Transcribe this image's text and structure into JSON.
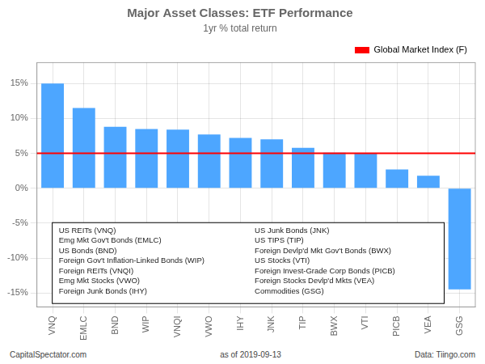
{
  "chart_data": {
    "type": "bar",
    "title": "Major Asset Classes: ETF Performance",
    "subtitle": "1yr % total return",
    "categories": [
      "VNQ",
      "EMLC",
      "BND",
      "WIP",
      "VNQI",
      "VWO",
      "IHY",
      "JNK",
      "TIP",
      "BWX",
      "VTI",
      "PICB",
      "VEA",
      "GSG"
    ],
    "values": [
      15.0,
      11.5,
      8.8,
      8.5,
      8.4,
      7.7,
      7.2,
      7.0,
      5.8,
      5.1,
      5.0,
      2.7,
      1.8,
      -14.5
    ],
    "color": "#4da6ff",
    "reference_line": {
      "name": "Global Market Index (F)",
      "value": 5.0,
      "color": "#ff0000"
    },
    "legend": "upper right",
    "ylim": [
      -17,
      18
    ],
    "yticks": [
      {
        "value": -15,
        "label": "-15%"
      },
      {
        "value": -10,
        "label": "-10%"
      },
      {
        "value": -5,
        "label": "-5%"
      },
      {
        "value": 0,
        "label": "0%"
      },
      {
        "value": 5,
        "label": "5%"
      },
      {
        "value": 10,
        "label": "10%"
      },
      {
        "value": 15,
        "label": "15%"
      }
    ],
    "grid": true,
    "annotation_columns": [
      [
        "US REITs (VNQ)",
        "Emg Mkt Gov't Bonds (EMLC)",
        "US Bonds (BND)",
        "Foreign Gov't Inflation-Linked Bonds (WIP)",
        "Foreign REITs (VNQI)",
        "Emg Mkt Stocks (VWO)",
        "Foreign Junk Bonds (IHY)"
      ],
      [
        "US Junk Bonds (JNK)",
        "US TIPS (TIP)",
        "Foreign Devlp'd Mkt Gov't Bonds (BWX)",
        "US Stocks (VTI)",
        "Foreign Invest-Grade Corp Bonds (PICB)",
        "Foreign Stocks Devlp'd Mkts (VEA)",
        "Commodities (GSG)"
      ]
    ],
    "footnotes": [
      "CapitalSpectator.com",
      "as of  2019-09-13",
      "Data: Tiingo.com"
    ]
  }
}
